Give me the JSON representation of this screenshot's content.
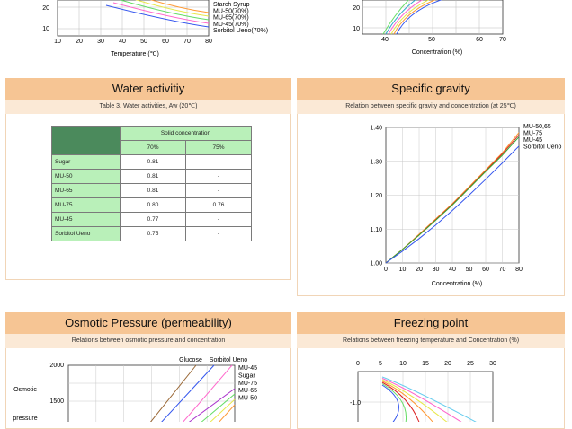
{
  "top_left_chart": {
    "xlabel": "Temperature (℃)",
    "x_ticks": [
      "10",
      "20",
      "30",
      "40",
      "50",
      "60",
      "70",
      "80"
    ],
    "y_ticks": [
      "20",
      "10"
    ],
    "legend": [
      "Starch Syrup",
      "MU-50(70%)",
      "MU-65(70%)",
      "MU-45(70%)",
      "Sorbitol Ueno(70%)"
    ],
    "series_colors": [
      "#ff9933",
      "#e8e84a",
      "#66dd66",
      "#ff66cc",
      "#3355ee"
    ]
  },
  "top_right_chart": {
    "xlabel": "Concentration (%)",
    "x_ticks": [
      "40",
      "50",
      "60",
      "70"
    ],
    "y_ticks": [
      "20",
      "10"
    ]
  },
  "water_activity": {
    "title": "Water activitiy",
    "subtitle": "Table 3. Water activities, Aw (20℃)",
    "header_group": "Solid concentration",
    "columns": [
      "70%",
      "75%"
    ],
    "rows": [
      {
        "name": "Sugar",
        "v70": "0.81",
        "v75": "-"
      },
      {
        "name": "MU-50",
        "v70": "0.81",
        "v75": "-"
      },
      {
        "name": "MU-65",
        "v70": "0.81",
        "v75": "-"
      },
      {
        "name": "MU-75",
        "v70": "0.80",
        "v75": "0.76"
      },
      {
        "name": "MU-45",
        "v70": "0.77",
        "v75": "-"
      },
      {
        "name": "Sorbitol Ueno",
        "v70": "0.75",
        "v75": "-"
      }
    ]
  },
  "specific_gravity": {
    "title": "Specific gravity",
    "subtitle": "Relation between specific gravity and concentration (at 25℃)",
    "xlabel": "Concentration (%)",
    "legend": [
      "MU-50,65",
      "MU-75",
      "MU-45",
      "Sorbitol Ueno"
    ],
    "chart_data": {
      "type": "line",
      "x": [
        0,
        10,
        20,
        30,
        40,
        50,
        60,
        70,
        80
      ],
      "x_ticks": [
        "0",
        "10",
        "20",
        "30",
        "40",
        "50",
        "60",
        "70",
        "80"
      ],
      "y_ticks": [
        "1.00",
        "1.10",
        "1.20",
        "1.30",
        "1.40"
      ],
      "xlim": [
        0,
        80
      ],
      "ylim": [
        1.0,
        1.4
      ],
      "series": [
        {
          "name": "MU-50,65",
          "color": "#ff9933",
          "values": [
            1.0,
            1.04,
            1.085,
            1.13,
            1.175,
            1.225,
            1.275,
            1.325,
            1.385
          ]
        },
        {
          "name": "MU-75",
          "color": "#dd2222",
          "values": [
            1.0,
            1.04,
            1.083,
            1.128,
            1.173,
            1.222,
            1.272,
            1.322,
            1.378
          ]
        },
        {
          "name": "MU-45",
          "color": "#33aa33",
          "values": [
            1.0,
            1.04,
            1.082,
            1.126,
            1.171,
            1.22,
            1.27,
            1.318,
            1.372
          ]
        },
        {
          "name": "Sorbitol Ueno",
          "color": "#3355ee",
          "values": [
            1.0,
            1.035,
            1.072,
            1.112,
            1.155,
            1.2,
            1.247,
            1.295,
            1.345
          ]
        }
      ]
    }
  },
  "osmotic_pressure": {
    "title": "Osmotic Pressure (permeability)",
    "subtitle": "Relations between osmotic pressure and concentration",
    "ylabel_1": "Osmotic",
    "ylabel_2": "pressure",
    "y_ticks": [
      "2000",
      "1500"
    ],
    "top_labels": [
      "Glucose",
      "Sorbitol Ueno"
    ],
    "legend": [
      "MU-45",
      "Sugar",
      "MU-75",
      "MU-65",
      "MU-50"
    ]
  },
  "freezing_point": {
    "title": "Freezing point",
    "subtitle": "Relations between freezing temperature and Concentration (%)",
    "x_ticks": [
      "0",
      "5",
      "10",
      "15",
      "20",
      "25",
      "30"
    ],
    "y_tick": "-1.0"
  }
}
